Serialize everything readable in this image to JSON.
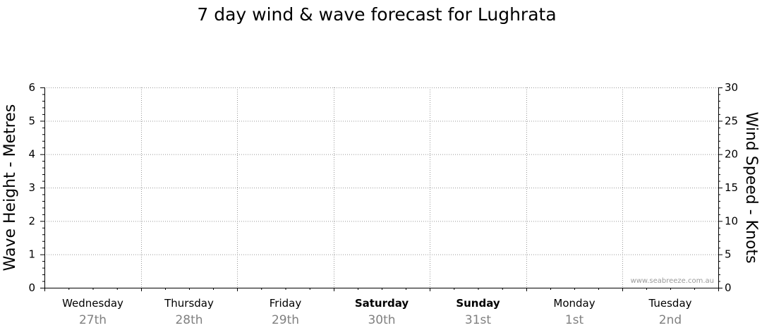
{
  "chart_data": {
    "type": "line",
    "title": "7 day wind & wave forecast for Lughrata",
    "y_left": {
      "label": "Wave Height - Metres",
      "range": [
        0,
        6
      ],
      "ticks": [
        0,
        1,
        2,
        3,
        4,
        5,
        6
      ]
    },
    "y_right": {
      "label": "Wind Speed - Knots",
      "range": [
        0,
        30
      ],
      "ticks": [
        0,
        5,
        10,
        15,
        20,
        25,
        30
      ]
    },
    "days": [
      {
        "day": "Wednesday",
        "date": "27th",
        "bold": false
      },
      {
        "day": "Thursday",
        "date": "28th",
        "bold": false
      },
      {
        "day": "Friday",
        "date": "29th",
        "bold": false
      },
      {
        "day": "Saturday",
        "date": "30th",
        "bold": true
      },
      {
        "day": "Sunday",
        "date": "31st",
        "bold": true
      },
      {
        "day": "Monday",
        "date": "1st",
        "bold": false
      },
      {
        "day": "Tuesday",
        "date": "2nd",
        "bold": false
      }
    ],
    "series": [],
    "grid": true,
    "watermark": "www.seabreeze.com.au"
  },
  "colors": {
    "grid": "#999999",
    "axis": "#000000",
    "date_text": "#808080"
  }
}
